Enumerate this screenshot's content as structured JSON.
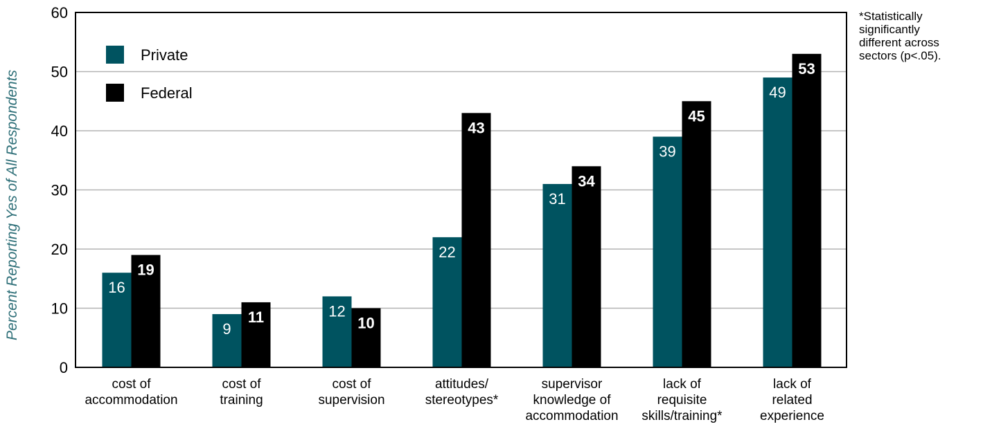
{
  "chart_data": {
    "type": "bar",
    "ylabel": "Percent Reporting Yes of All Respondents",
    "ylim": [
      0,
      60
    ],
    "yticks": [
      0,
      10,
      20,
      30,
      40,
      50,
      60
    ],
    "grid": true,
    "legend_placement": "top-left",
    "categories": [
      [
        "cost of",
        "accommodation"
      ],
      [
        "cost of",
        "training"
      ],
      [
        "cost of",
        "supervision"
      ],
      [
        "attitudes/",
        "stereotypes*"
      ],
      [
        "supervisor",
        "knowledge of",
        "accommodation"
      ],
      [
        "lack of",
        "requisite",
        "skills/training*"
      ],
      [
        "lack of",
        "related",
        "experience"
      ]
    ],
    "series": [
      {
        "name": "Private",
        "color": "#005360",
        "values": [
          16,
          9,
          12,
          22,
          31,
          39,
          49
        ]
      },
      {
        "name": "Federal",
        "color": "#000000",
        "values": [
          19,
          11,
          10,
          43,
          34,
          45,
          53
        ]
      }
    ]
  },
  "note": {
    "lines": [
      "*Statistically",
      "significantly",
      "different across",
      "sectors (p<.05)."
    ]
  },
  "colors": {
    "ylabel": "#2e6f78",
    "grid": "#b3b3b3",
    "axis": "#000000",
    "label_text": "#ffffff"
  }
}
